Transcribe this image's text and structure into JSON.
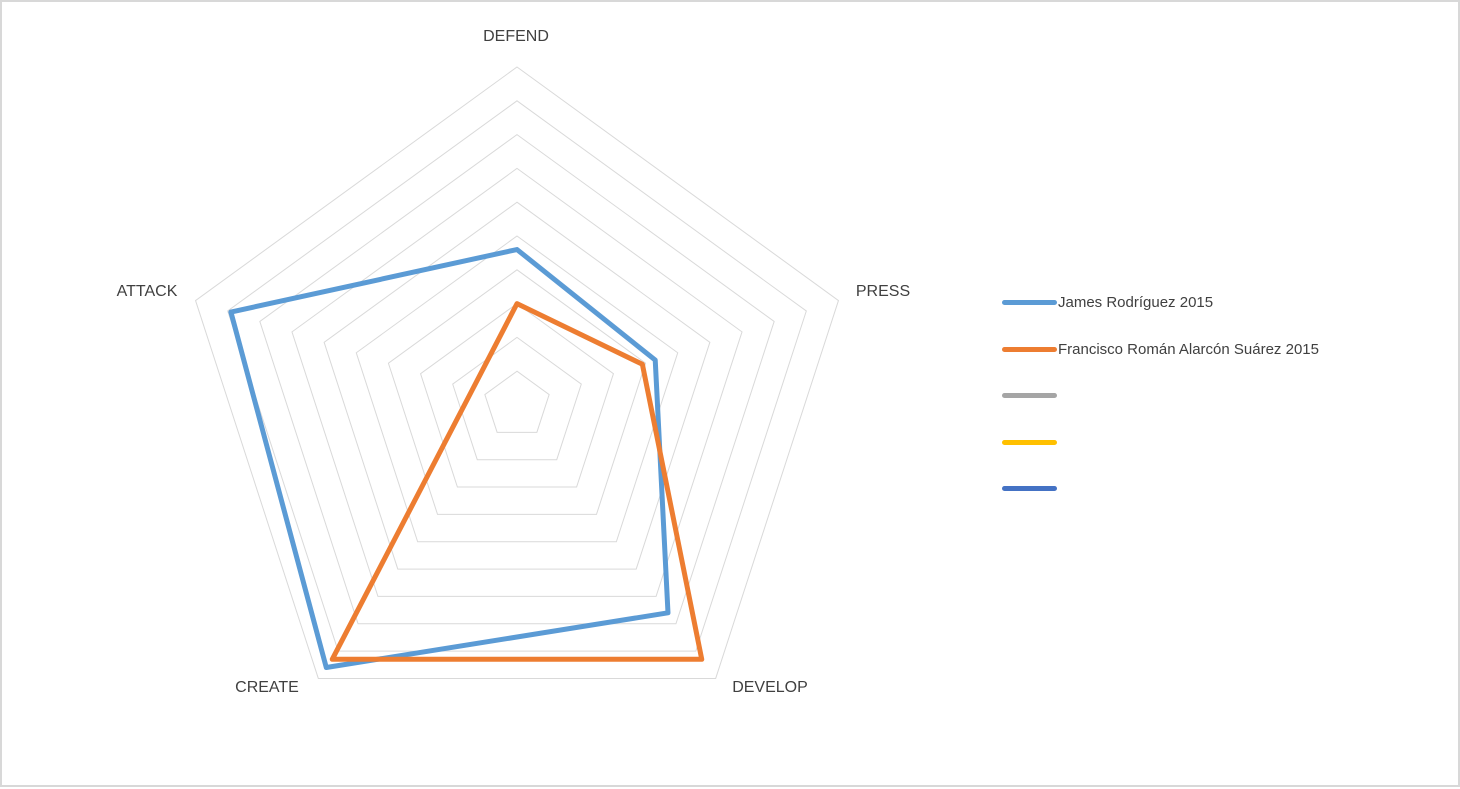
{
  "window": {
    "background_color": "#FFFFFF",
    "border_color": "#D8D8D8"
  },
  "chart_data": {
    "type": "radar",
    "title": "",
    "categories": [
      "DEFEND",
      "PRESS",
      "DEVELOP",
      "CREATE",
      "ATTACK"
    ],
    "r_axis": {
      "min": 0,
      "max": 100,
      "rings": 10,
      "tick_labels_visible": false
    },
    "grid": {
      "color": "#D9D9D9",
      "spokes_visible": false,
      "shape": "pentagon"
    },
    "series": [
      {
        "name": "James Rodríguez 2015",
        "color": "#5B9BD5",
        "values": [
          46,
          43,
          76,
          96,
          89
        ]
      },
      {
        "name": "Francisco Román Alarcón Suárez 2015",
        "color": "#ED7D31",
        "values": [
          30,
          39,
          93,
          93,
          14
        ]
      },
      {
        "name": "",
        "color": "#A5A5A5",
        "values": []
      },
      {
        "name": "",
        "color": "#FFC000",
        "values": []
      },
      {
        "name": "",
        "color": "#4472C4",
        "values": []
      }
    ],
    "series_line_width": 5,
    "label_color": "#404040",
    "legend_position": "right"
  }
}
